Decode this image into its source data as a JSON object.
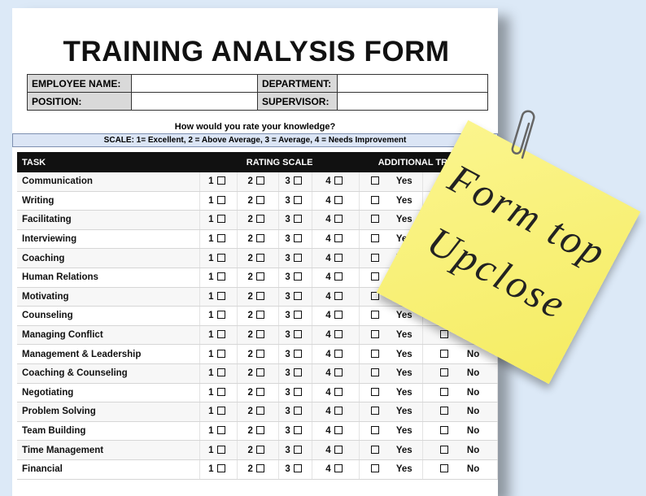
{
  "header": {
    "title": "TRAINING ANALYSIS FORM"
  },
  "info_fields": [
    {
      "label": "EMPLOYEE NAME:"
    },
    {
      "label": "DEPARTMENT:"
    },
    {
      "label": "POSITION:"
    },
    {
      "label": "SUPERVISOR:"
    }
  ],
  "question": "How would you rate your knowledge?",
  "scale": "SCALE: 1= Excellent, 2 = Above Average, 3 = Average, 4 = Needs Improvement",
  "table": {
    "headers": [
      "TASK",
      "RATING SCALE",
      "ADDITIONAL TRAINING"
    ],
    "rating_options": [
      "1",
      "2",
      "3",
      "4"
    ],
    "training_options": [
      "Yes",
      "No"
    ],
    "rows": [
      "Communication",
      "Writing",
      "Facilitating",
      "Interviewing",
      "Coaching",
      "Human Relations",
      "Motivating",
      "Counseling",
      "Managing Conflict",
      "Management & Leadership",
      "Coaching & Counseling",
      "Negotiating",
      "Problem Solving",
      "Team Building",
      "Time Management",
      "Financial"
    ]
  },
  "sticky_note": {
    "lines": [
      "Form top",
      "Upclose"
    ]
  }
}
